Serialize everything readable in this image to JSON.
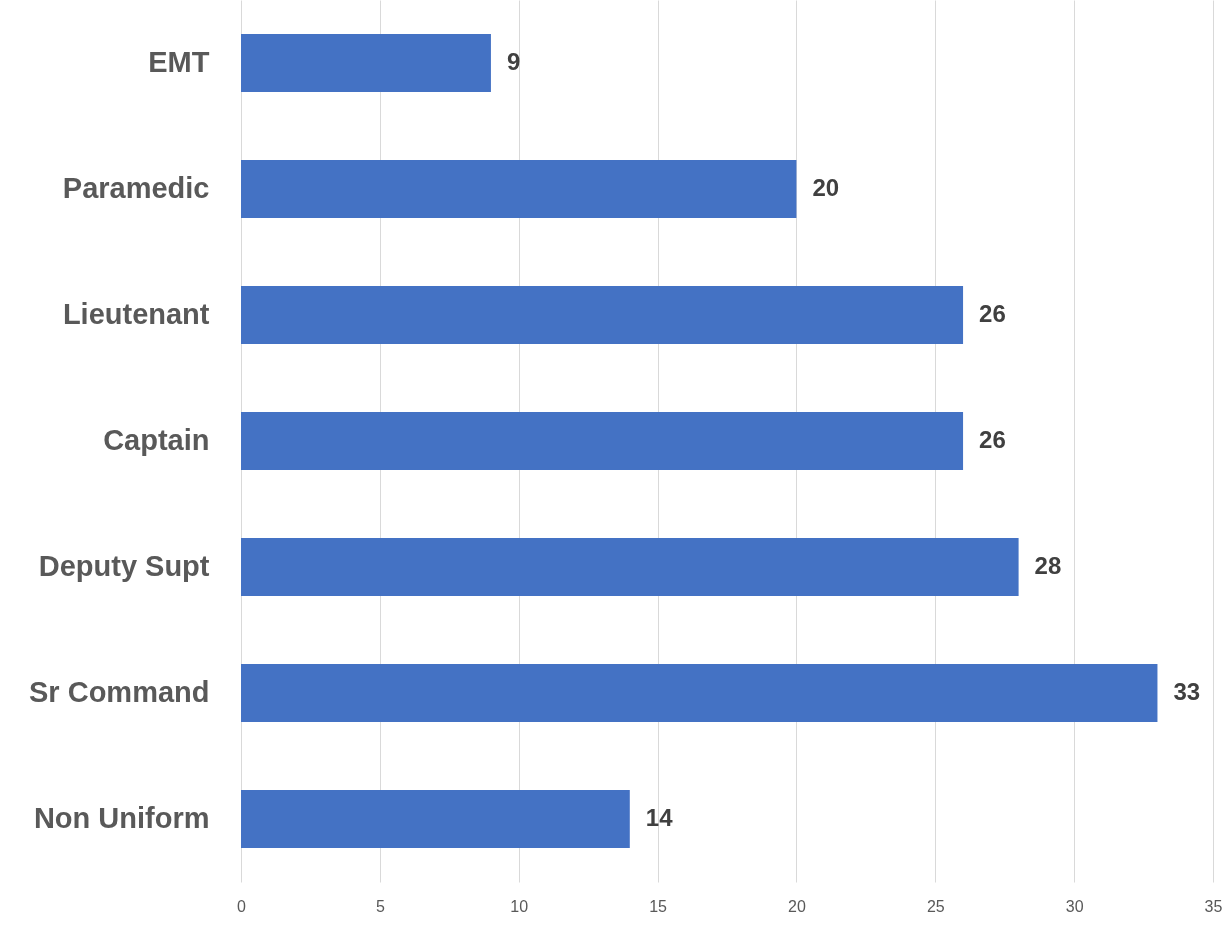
{
  "chart_data": {
    "type": "bar",
    "orientation": "horizontal",
    "categories": [
      "EMT",
      "Paramedic",
      "Lieutenant",
      "Captain",
      "Deputy Supt",
      "Sr Command",
      "Non Uniform"
    ],
    "values": [
      9,
      20,
      26,
      26,
      28,
      33,
      14
    ],
    "color": "#4472c4",
    "data_labels": true,
    "xlim": [
      0,
      35
    ],
    "xticks": [
      0,
      5,
      10,
      15,
      20,
      25,
      30,
      35
    ],
    "grid": "x"
  }
}
